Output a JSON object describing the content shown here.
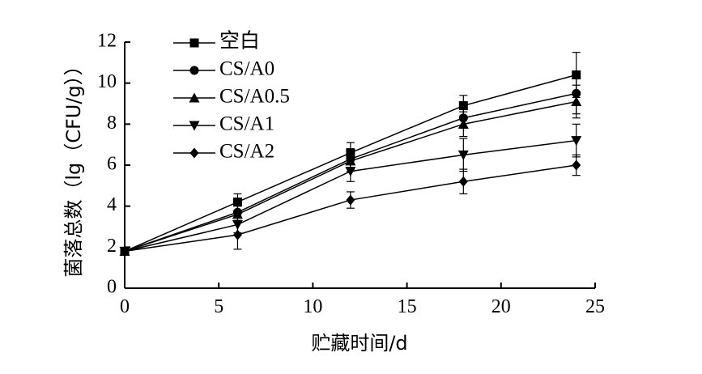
{
  "chart_data": {
    "type": "line",
    "xlabel": "贮藏时间/d",
    "ylabel": "菌落总数（lg（CFU/g））",
    "xlim": [
      0,
      25
    ],
    "ylim": [
      0,
      12
    ],
    "x_ticks": [
      "0",
      "5",
      "10",
      "15",
      "20",
      "25"
    ],
    "y_ticks": [
      "0",
      "2",
      "4",
      "6",
      "8",
      "10",
      "12"
    ],
    "legend_position": "top-left",
    "x": [
      0,
      6,
      12,
      18,
      24
    ],
    "series": [
      {
        "name": "空白",
        "marker": "square",
        "values": [
          1.8,
          4.2,
          6.6,
          8.9,
          10.4
        ],
        "errors": [
          0.1,
          0.4,
          0.5,
          0.5,
          1.1
        ]
      },
      {
        "name": "CS/A0",
        "marker": "circle",
        "values": [
          1.8,
          3.7,
          6.3,
          8.3,
          9.5
        ],
        "errors": [
          0.1,
          0.4,
          0.5,
          0.5,
          1.0
        ]
      },
      {
        "name": "CS/A0.5",
        "marker": "triangle-up",
        "values": [
          1.8,
          3.6,
          6.2,
          8.0,
          9.1
        ],
        "errors": [
          0.1,
          0.4,
          0.5,
          0.6,
          0.8
        ]
      },
      {
        "name": "CS/A1",
        "marker": "triangle-down",
        "values": [
          1.8,
          3.1,
          5.7,
          6.5,
          7.2
        ],
        "errors": [
          0.1,
          0.4,
          0.5,
          0.8,
          0.8
        ]
      },
      {
        "name": "CS/A2",
        "marker": "diamond",
        "values": [
          1.8,
          2.6,
          4.3,
          5.2,
          6.0
        ],
        "errors": [
          0.1,
          0.7,
          0.4,
          0.6,
          0.5
        ]
      }
    ]
  }
}
